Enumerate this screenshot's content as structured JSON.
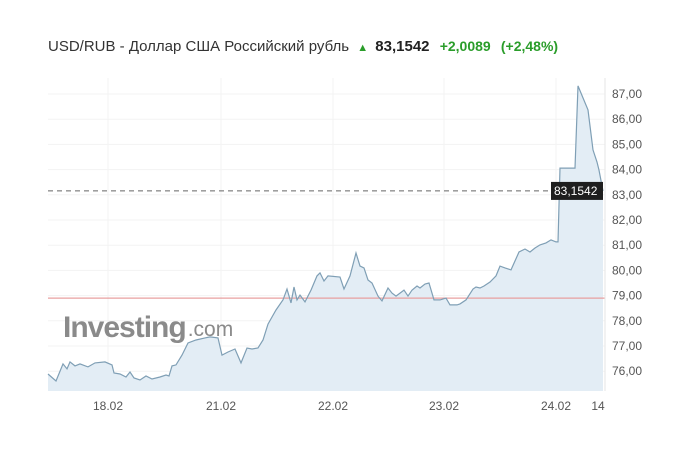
{
  "header": {
    "title": "USD/RUB - Доллар США Российский рубль",
    "trend_icon": "arrow-up-icon",
    "price": "83,1542",
    "change": "+2,0089",
    "change_pct": "(+2,48%)",
    "change_color": "#2a9d2a"
  },
  "watermark": {
    "brand": "Investing",
    "suffix": ".com"
  },
  "chart_data": {
    "type": "area",
    "title": "",
    "xlabel": "",
    "ylabel": "",
    "x_tick_labels": [
      "18.02",
      "21.02",
      "22.02",
      "23.02",
      "24.02",
      "14"
    ],
    "y_ticks": [
      76,
      77,
      78,
      79,
      80,
      81,
      82,
      83,
      84,
      85,
      86,
      87
    ],
    "y_tick_labels": [
      "76,00",
      "77,00",
      "78,00",
      "79,00",
      "80,00",
      "81,00",
      "82,00",
      "83,00",
      "84,00",
      "85,00",
      "86,00",
      "87,00"
    ],
    "ylim": [
      75.2,
      88.0
    ],
    "grid": true,
    "axis_side": "right",
    "line_color": "#7f9fb5",
    "fill_color": "#e3edf5",
    "current_value": 83.1542,
    "current_label": "83,1542",
    "reference_line": 78.9,
    "reference_color": "#e8a0a0",
    "series": [
      {
        "values": [
          75.89,
          75.61,
          76.29,
          76.09,
          76.37,
          76.21,
          76.29,
          76.17,
          76.33,
          76.37,
          76.25,
          75.93,
          75.89,
          75.77,
          75.97,
          75.73,
          75.65,
          75.81,
          75.69,
          75.77,
          75.85,
          75.81,
          76.21,
          76.25,
          76.64,
          77.12,
          77.24,
          77.32,
          77.36,
          77.32,
          76.64,
          76.76,
          76.88,
          76.33,
          76.92,
          76.88,
          76.92,
          77.24,
          77.87,
          78.15,
          78.43,
          78.83,
          79.26,
          78.71,
          79.34,
          78.83,
          79.02,
          78.75,
          79.22,
          79.78,
          79.9,
          79.58,
          79.78,
          79.74,
          79.26,
          79.78,
          80.69,
          80.17,
          80.1,
          79.62,
          79.5,
          78.98,
          78.79,
          79.3,
          79.1,
          78.98,
          79.1,
          79.22,
          78.98,
          79.22,
          79.38,
          79.3,
          79.46,
          79.5,
          78.83,
          78.83,
          78.9,
          78.63,
          78.63,
          78.67,
          78.83,
          79.26,
          79.34,
          79.3,
          79.38,
          79.54,
          79.78,
          80.17,
          80.1,
          80.02,
          80.73,
          80.85,
          80.73,
          80.89,
          81.01,
          81.09,
          81.21,
          81.13,
          81.13,
          84.06,
          84.06,
          87.32,
          86.37,
          84.78,
          84.3,
          83.98,
          83.15
        ]
      }
    ]
  }
}
